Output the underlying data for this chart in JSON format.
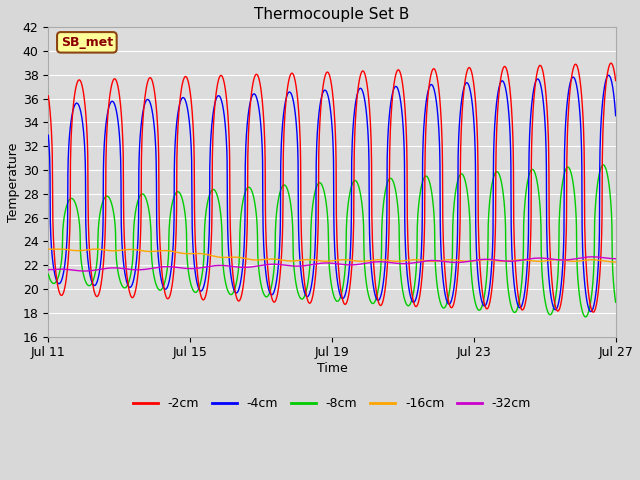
{
  "title": "Thermocouple Set B",
  "xlabel": "Time",
  "ylabel": "Temperature",
  "ylim": [
    16,
    42
  ],
  "yticks": [
    16,
    18,
    20,
    22,
    24,
    26,
    28,
    30,
    32,
    34,
    36,
    38,
    40,
    42
  ],
  "annotation_text": "SB_met",
  "annotation_bg": "#ffff99",
  "annotation_border": "#8B4513",
  "colors": {
    "-2cm": "#ff0000",
    "-4cm": "#0000ff",
    "-8cm": "#00cc00",
    "-16cm": "#ffa500",
    "-32cm": "#cc00cc"
  },
  "legend_labels": [
    "-2cm",
    "-4cm",
    "-8cm",
    "-16cm",
    "-32cm"
  ],
  "x_tick_labels": [
    "Jul 11",
    "Jul 15",
    "Jul 19",
    "Jul 23",
    "Jul 27"
  ],
  "x_tick_positions": [
    0,
    4,
    8,
    12,
    16
  ],
  "num_days": 16,
  "fig_bg": "#d8d8d8",
  "plot_bg": "#dcdcdc"
}
